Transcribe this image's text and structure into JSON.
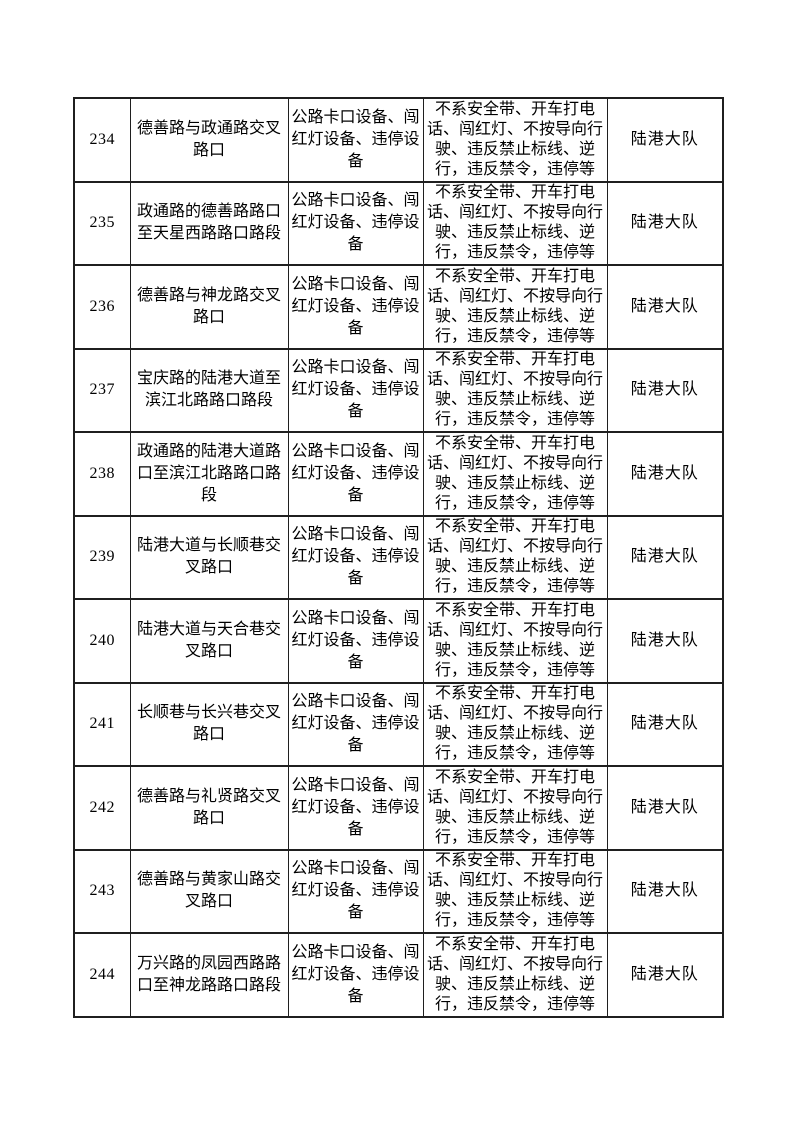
{
  "page": {
    "background_color": "#ffffff",
    "border_color": "#1f1f1f",
    "text_color": "#000000"
  },
  "table": {
    "column_keys": [
      "seq",
      "location",
      "equipment",
      "violations",
      "unit"
    ],
    "rows": [
      {
        "seq": "234",
        "location": "德善路与政通路交叉路口",
        "equipment": "公路卡口设备、闯红灯设备、违停设备",
        "violations": "不系安全带、开车打电话、闯红灯、不按导向行驶、违反禁止标线、逆行，违反禁令，违停等",
        "unit": "陆港大队"
      },
      {
        "seq": "235",
        "location": "政通路的德善路路口至天星西路路口路段",
        "equipment": "公路卡口设备、闯红灯设备、违停设备",
        "violations": "不系安全带、开车打电话、闯红灯、不按导向行驶、违反禁止标线、逆行，违反禁令，违停等",
        "unit": "陆港大队"
      },
      {
        "seq": "236",
        "location": "德善路与神龙路交叉路口",
        "equipment": "公路卡口设备、闯红灯设备、违停设备",
        "violations": "不系安全带、开车打电话、闯红灯、不按导向行驶、违反禁止标线、逆行，违反禁令，违停等",
        "unit": "陆港大队"
      },
      {
        "seq": "237",
        "location": "宝庆路的陆港大道至滨江北路路口路段",
        "equipment": "公路卡口设备、闯红灯设备、违停设备",
        "violations": "不系安全带、开车打电话、闯红灯、不按导向行驶、违反禁止标线、逆行，违反禁令，违停等",
        "unit": "陆港大队"
      },
      {
        "seq": "238",
        "location": "政通路的陆港大道路口至滨江北路路口路段",
        "equipment": "公路卡口设备、闯红灯设备、违停设备",
        "violations": "不系安全带、开车打电话、闯红灯、不按导向行驶、违反禁止标线、逆行，违反禁令，违停等",
        "unit": "陆港大队"
      },
      {
        "seq": "239",
        "location": "陆港大道与长顺巷交叉路口",
        "equipment": "公路卡口设备、闯红灯设备、违停设备",
        "violations": "不系安全带、开车打电话、闯红灯、不按导向行驶、违反禁止标线、逆行，违反禁令，违停等",
        "unit": "陆港大队"
      },
      {
        "seq": "240",
        "location": "陆港大道与天合巷交叉路口",
        "equipment": "公路卡口设备、闯红灯设备、违停设备",
        "violations": "不系安全带、开车打电话、闯红灯、不按导向行驶、违反禁止标线、逆行，违反禁令，违停等",
        "unit": "陆港大队"
      },
      {
        "seq": "241",
        "location": "长顺巷与长兴巷交叉路口",
        "equipment": "公路卡口设备、闯红灯设备、违停设备",
        "violations": "不系安全带、开车打电话、闯红灯、不按导向行驶、违反禁止标线、逆行，违反禁令，违停等",
        "unit": "陆港大队"
      },
      {
        "seq": "242",
        "location": "德善路与礼贤路交叉路口",
        "equipment": "公路卡口设备、闯红灯设备、违停设备",
        "violations": "不系安全带、开车打电话、闯红灯、不按导向行驶、违反禁止标线、逆行，违反禁令，违停等",
        "unit": "陆港大队"
      },
      {
        "seq": "243",
        "location": "德善路与黄家山路交叉路口",
        "equipment": "公路卡口设备、闯红灯设备、违停设备",
        "violations": "不系安全带、开车打电话、闯红灯、不按导向行驶、违反禁止标线、逆行，违反禁令，违停等",
        "unit": "陆港大队"
      },
      {
        "seq": "244",
        "location": "万兴路的凤园西路路口至神龙路路口路段",
        "equipment": "公路卡口设备、闯红灯设备、违停设备",
        "violations": "不系安全带、开车打电话、闯红灯、不按导向行驶、违反禁止标线、逆行，违反禁令，违停等",
        "unit": "陆港大队"
      }
    ]
  }
}
